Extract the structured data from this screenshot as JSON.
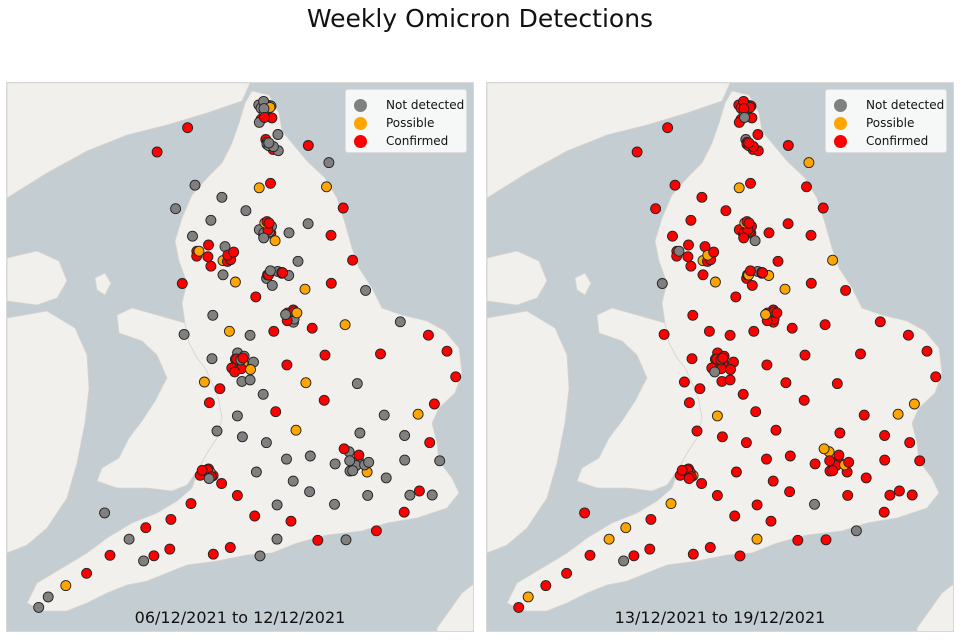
{
  "title": "Weekly Omicron Detections",
  "legend": [
    {
      "label": "Not detected",
      "color": "#808080"
    },
    {
      "label": "Possible",
      "color": "#ffa500"
    },
    {
      "label": "Confirmed",
      "color": "#ff0000"
    }
  ],
  "colors": {
    "sea": "#c4cdd2",
    "land": "#f2f0ec",
    "marker_edge": "#222222"
  },
  "panels": [
    {
      "date_range": "06/12/2021 to 12/12/2021"
    },
    {
      "date_range": "13/12/2021 to 19/12/2021"
    }
  ]
}
